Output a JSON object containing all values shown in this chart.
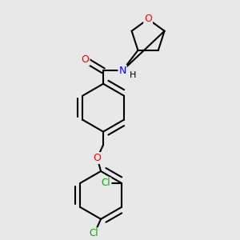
{
  "background_color": "#e8e8e8",
  "bond_color": "#000000",
  "bond_width": 1.5,
  "atom_colors": {
    "O": "#ff0000",
    "N": "#0000ff",
    "Cl": "#00aa00",
    "H": "#000000"
  },
  "figsize": [
    3.0,
    3.0
  ],
  "dpi": 100,
  "xlim": [
    0,
    10
  ],
  "ylim": [
    0,
    10
  ]
}
